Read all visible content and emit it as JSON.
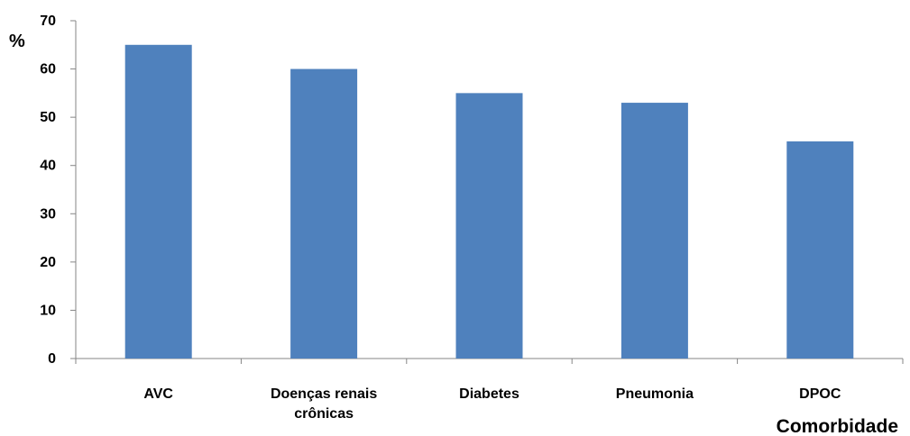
{
  "chart_data": {
    "type": "bar",
    "categories": [
      "AVC",
      "Doenças renais crônicas",
      "Diabetes",
      "Pneumonia",
      "DPOC"
    ],
    "category_label_lines": [
      [
        "AVC"
      ],
      [
        "Doenças renais",
        "crônicas"
      ],
      [
        "Diabetes"
      ],
      [
        "Pneumonia"
      ],
      [
        "DPOC"
      ]
    ],
    "values": [
      65,
      60,
      55,
      53,
      45
    ],
    "title": "",
    "xlabel": "Comorbidade",
    "ylabel": "%",
    "ylim": [
      0,
      70
    ],
    "yticks": [
      0,
      10,
      20,
      30,
      40,
      50,
      60,
      70
    ],
    "grid": false,
    "legend": "none",
    "bar_color": "#4F81BD",
    "axis_color": "#868686"
  }
}
